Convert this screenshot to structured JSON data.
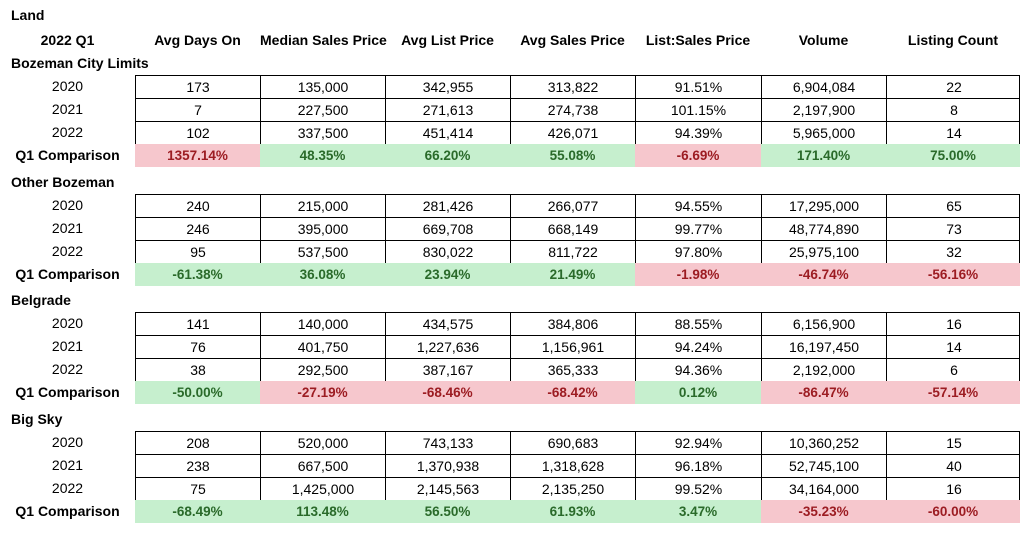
{
  "title": "Land",
  "header": {
    "period": "2022 Q1",
    "columns": [
      "Avg Days On",
      "Median Sales Price",
      "Avg List Price",
      "Avg Sales Price",
      "List:Sales Price",
      "Volume",
      "Listing Count"
    ]
  },
  "colors": {
    "positive_bg": "#c6efce",
    "positive_text": "#2a6a2a",
    "negative_bg": "#f6c7cd",
    "negative_text": "#9c1c22"
  },
  "sections": [
    {
      "name": "Bozeman City Limits",
      "rows": [
        {
          "year": "2020",
          "values": [
            "173",
            "135,000",
            "342,955",
            "313,822",
            "91.51%",
            "6,904,084",
            "22"
          ]
        },
        {
          "year": "2021",
          "values": [
            "7",
            "227,500",
            "271,613",
            "274,738",
            "101.15%",
            "2,197,900",
            "8"
          ]
        },
        {
          "year": "2022",
          "values": [
            "102",
            "337,500",
            "451,414",
            "426,071",
            "94.39%",
            "5,965,000",
            "14"
          ]
        }
      ],
      "comparison": {
        "label": "Q1 Comparison",
        "values": [
          "1357.14%",
          "48.35%",
          "66.20%",
          "55.08%",
          "-6.69%",
          "171.40%",
          "75.00%"
        ],
        "status": [
          "neg",
          "pos",
          "pos",
          "pos",
          "neg",
          "pos",
          "pos"
        ]
      }
    },
    {
      "name": "Other Bozeman",
      "rows": [
        {
          "year": "2020",
          "values": [
            "240",
            "215,000",
            "281,426",
            "266,077",
            "94.55%",
            "17,295,000",
            "65"
          ]
        },
        {
          "year": "2021",
          "values": [
            "246",
            "395,000",
            "669,708",
            "668,149",
            "99.77%",
            "48,774,890",
            "73"
          ]
        },
        {
          "year": "2022",
          "values": [
            "95",
            "537,500",
            "830,022",
            "811,722",
            "97.80%",
            "25,975,100",
            "32"
          ]
        }
      ],
      "comparison": {
        "label": "Q1 Comparison",
        "values": [
          "-61.38%",
          "36.08%",
          "23.94%",
          "21.49%",
          "-1.98%",
          "-46.74%",
          "-56.16%"
        ],
        "status": [
          "pos",
          "pos",
          "pos",
          "pos",
          "neg",
          "neg",
          "neg"
        ]
      }
    },
    {
      "name": "Belgrade",
      "rows": [
        {
          "year": "2020",
          "values": [
            "141",
            "140,000",
            "434,575",
            "384,806",
            "88.55%",
            "6,156,900",
            "16"
          ]
        },
        {
          "year": "2021",
          "values": [
            "76",
            "401,750",
            "1,227,636",
            "1,156,961",
            "94.24%",
            "16,197,450",
            "14"
          ]
        },
        {
          "year": "2022",
          "values": [
            "38",
            "292,500",
            "387,167",
            "365,333",
            "94.36%",
            "2,192,000",
            "6"
          ]
        }
      ],
      "comparison": {
        "label": "Q1 Comparison",
        "values": [
          "-50.00%",
          "-27.19%",
          "-68.46%",
          "-68.42%",
          "0.12%",
          "-86.47%",
          "-57.14%"
        ],
        "status": [
          "pos",
          "neg",
          "neg",
          "neg",
          "pos",
          "neg",
          "neg"
        ]
      }
    },
    {
      "name": "Big Sky",
      "rows": [
        {
          "year": "2020",
          "values": [
            "208",
            "520,000",
            "743,133",
            "690,683",
            "92.94%",
            "10,360,252",
            "15"
          ]
        },
        {
          "year": "2021",
          "values": [
            "238",
            "667,500",
            "1,370,938",
            "1,318,628",
            "96.18%",
            "52,745,100",
            "40"
          ]
        },
        {
          "year": "2022",
          "values": [
            "75",
            "1,425,000",
            "2,145,563",
            "2,135,250",
            "99.52%",
            "34,164,000",
            "16"
          ]
        }
      ],
      "comparison": {
        "label": "Q1 Comparison",
        "values": [
          "-68.49%",
          "113.48%",
          "56.50%",
          "61.93%",
          "3.47%",
          "-35.23%",
          "-60.00%"
        ],
        "status": [
          "pos",
          "pos",
          "pos",
          "pos",
          "pos",
          "neg",
          "neg"
        ]
      }
    }
  ]
}
